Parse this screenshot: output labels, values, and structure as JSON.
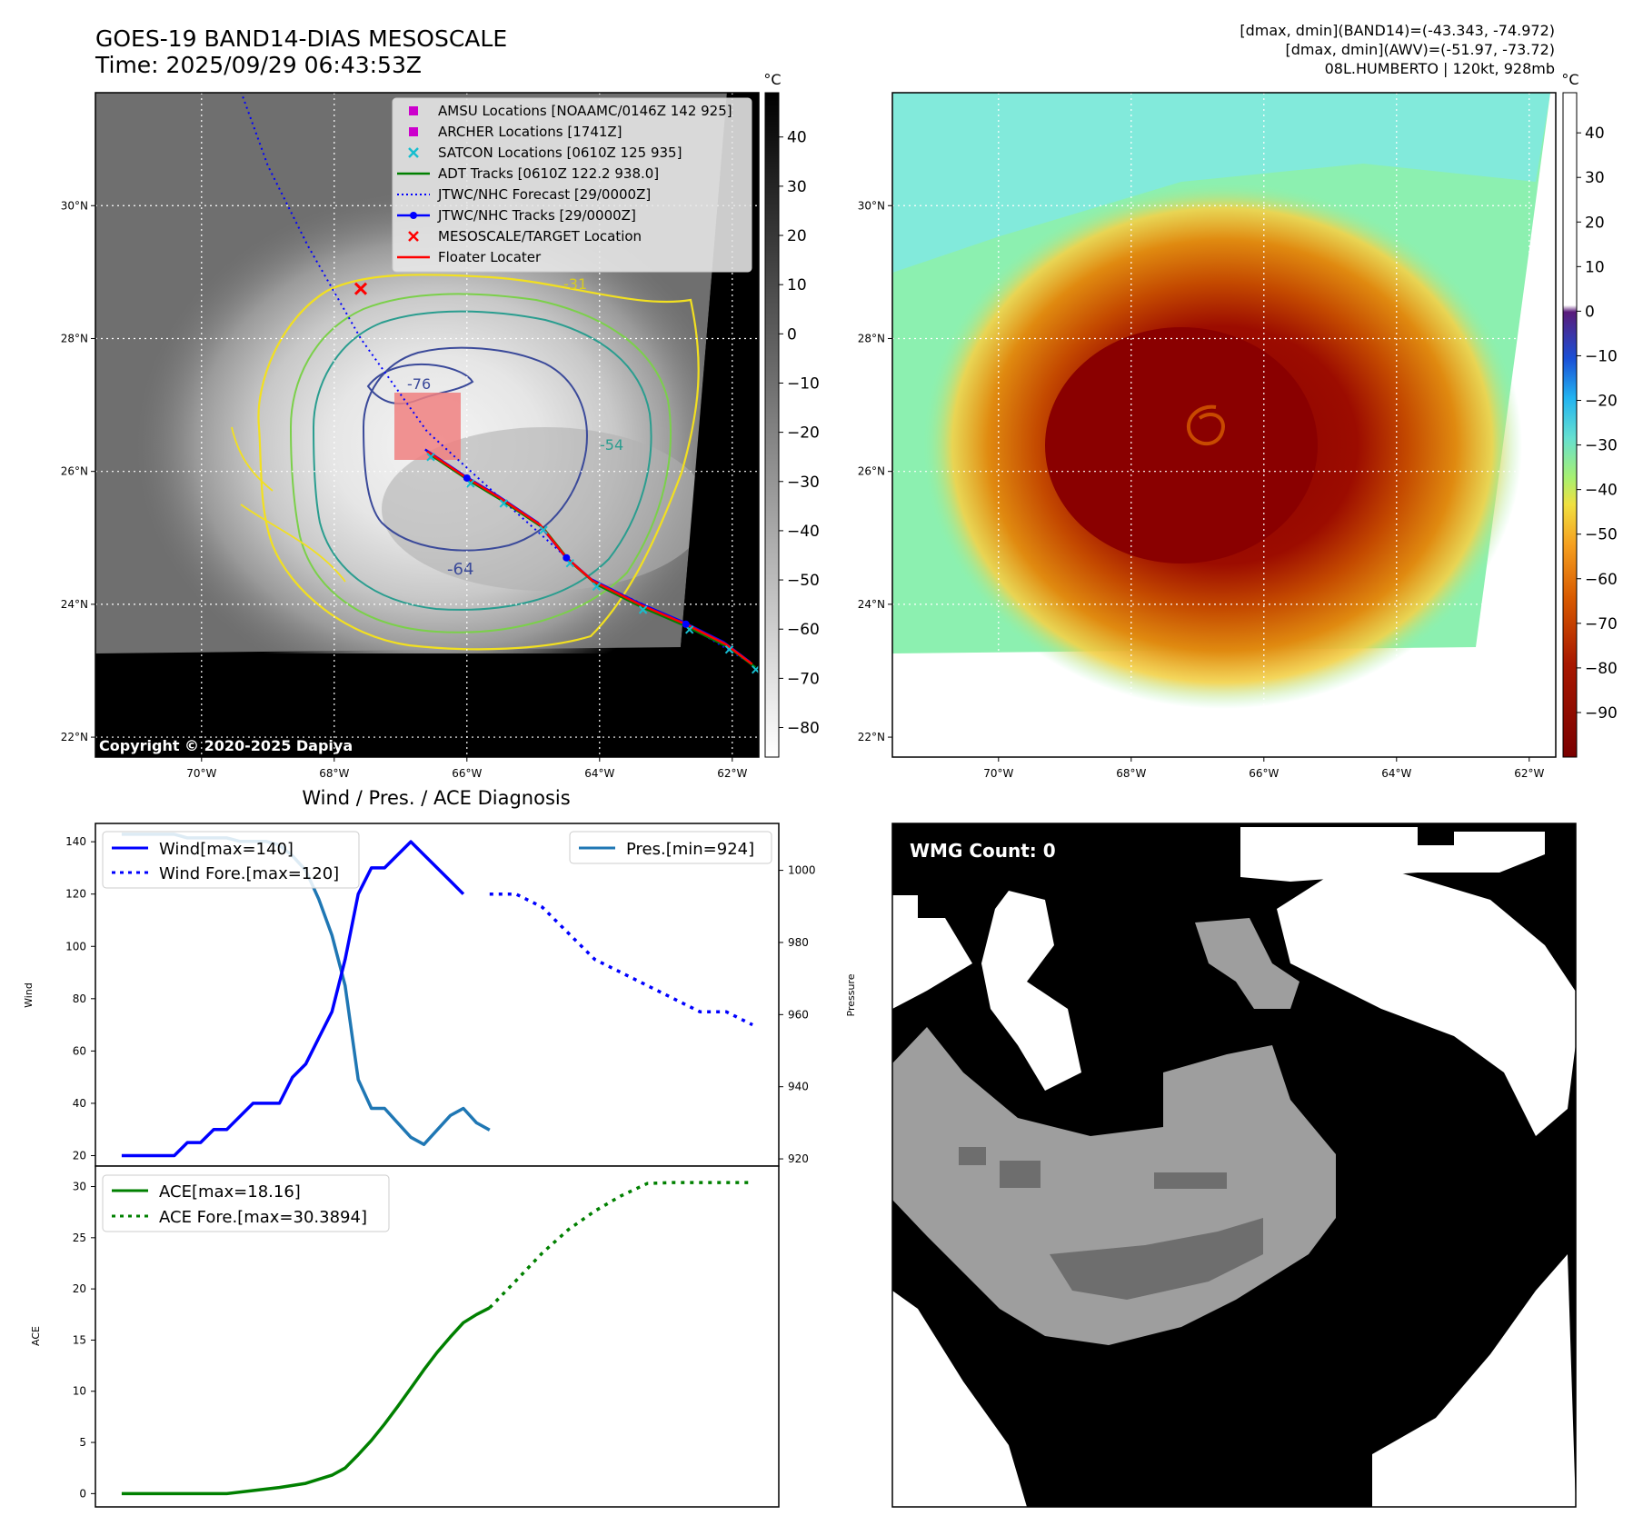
{
  "header": {
    "title_line1": "GOES-19 BAND14-DIAS MESOSCALE",
    "title_line2": "Time: 2025/09/29 06:43:53Z",
    "info_line1": "[dmax, dmin](BAND14)=(-43.343, -74.972)",
    "info_line2": "[dmax, dmin](AWV)=(-51.97, -73.72)",
    "info_line3": "08L.HUMBERTO | 120kt, 928mb"
  },
  "copyright": "Copyright © 2020-2025 Dapiya",
  "map": {
    "lat_labels": [
      "30°N",
      "28°N",
      "26°N",
      "24°N",
      "22°N"
    ],
    "lat_values": [
      30,
      28,
      26,
      24,
      22
    ],
    "lon_labels": [
      "70°W",
      "68°W",
      "66°W",
      "64°W",
      "62°W"
    ],
    "lon_values": [
      -70,
      -68,
      -66,
      -64,
      -62
    ],
    "lon_range": [
      -71.6,
      -61.6
    ],
    "lat_range": [
      21.7,
      31.7
    ],
    "contour_labels": [
      "-31",
      "-76",
      "-54",
      "-64"
    ],
    "legend": [
      {
        "label": "AMSU Locations [NOAAMC/0146Z 142 925]",
        "color": "#cc00cc",
        "marker": "square"
      },
      {
        "label": "ARCHER Locations [1741Z]",
        "color": "#cc00cc",
        "marker": "square"
      },
      {
        "label": "SATCON Locations [0610Z 125 935]",
        "color": "#17becf",
        "marker": "x"
      },
      {
        "label": "ADT Tracks [0610Z 122.2 938.0]",
        "color": "#008000",
        "marker": "line"
      },
      {
        "label": "JTWC/NHC Forecast [29/0000Z]",
        "color": "#0000ff",
        "marker": "dotted"
      },
      {
        "label": "JTWC/NHC Tracks [29/0000Z]",
        "color": "#0000ff",
        "marker": "line-dot"
      },
      {
        "label": "MESOSCALE/TARGET Location",
        "color": "#ff0000",
        "marker": "x"
      },
      {
        "label": "Floater Locater",
        "color": "#ff0000",
        "marker": "line"
      }
    ],
    "target": {
      "lon": -67.6,
      "lat": 28.75
    },
    "track": [
      [
        -66.6,
        26.3
      ],
      [
        -66.0,
        25.9
      ],
      [
        -65.5,
        25.6
      ],
      [
        -64.9,
        25.2
      ],
      [
        -64.5,
        24.7
      ],
      [
        -64.1,
        24.35
      ],
      [
        -63.4,
        24.0
      ],
      [
        -62.7,
        23.7
      ],
      [
        -62.1,
        23.4
      ],
      [
        -61.7,
        23.1
      ]
    ],
    "forecast": [
      [
        -61.7,
        23.1
      ],
      [
        -62.7,
        23.7
      ],
      [
        -64.1,
        24.35
      ],
      [
        -65.5,
        25.6
      ],
      [
        -66.6,
        26.6
      ],
      [
        -67.6,
        28.0
      ],
      [
        -68.4,
        29.4
      ],
      [
        -69.0,
        30.6
      ],
      [
        -69.4,
        31.7
      ]
    ]
  },
  "colorbar_gray": {
    "unit": "°C",
    "ticks": [
      "40",
      "30",
      "20",
      "10",
      "0",
      "−10",
      "−20",
      "−30",
      "−40",
      "−50",
      "−60",
      "−70",
      "−80"
    ],
    "values": [
      40,
      30,
      20,
      10,
      0,
      -10,
      -20,
      -30,
      -40,
      -50,
      -60,
      -70,
      -80
    ],
    "range": [
      -86,
      49
    ]
  },
  "colorbar_color": {
    "unit": "°C",
    "ticks": [
      "40",
      "30",
      "20",
      "10",
      "0",
      "−10",
      "−20",
      "−30",
      "−40",
      "−50",
      "−60",
      "−70",
      "−80",
      "−90"
    ],
    "values": [
      40,
      30,
      20,
      10,
      0,
      -10,
      -20,
      -30,
      -40,
      -50,
      -60,
      -70,
      -80,
      -90
    ],
    "range": [
      -100,
      49
    ]
  },
  "wmg": {
    "label": "WMG Count: 0"
  },
  "chart_data": [
    {
      "type": "line",
      "title": "Wind / Pres. / ACE Diagnosis",
      "ylabel": "Wind",
      "ylim": [
        16,
        147
      ],
      "yticks": [
        20,
        40,
        60,
        80,
        100,
        120,
        140
      ],
      "xlim": [
        -2,
        50
      ],
      "series": [
        {
          "name": "Wind[max=140]",
          "color": "#0000ff",
          "style": "solid",
          "x": [
            0,
            1,
            2,
            3,
            4,
            5,
            6,
            7,
            8,
            9,
            10,
            11,
            12,
            13,
            14,
            15,
            16,
            17,
            18,
            19,
            20,
            21,
            22,
            23,
            24,
            25,
            26,
            27,
            28
          ],
          "values": [
            20,
            20,
            20,
            20,
            20,
            25,
            25,
            30,
            30,
            35,
            40,
            40,
            40,
            50,
            55,
            65,
            75,
            95,
            120,
            130,
            130,
            135,
            140,
            135,
            130,
            125,
            120,
            null,
            null
          ]
        },
        {
          "name": "Wind Fore.[max=120]",
          "color": "#0000ff",
          "style": "dotted",
          "x": [
            28,
            30,
            32,
            34,
            36,
            38,
            40,
            42,
            44,
            46,
            48
          ],
          "values": [
            120,
            120,
            115,
            105,
            95,
            90,
            85,
            80,
            75,
            75,
            70
          ]
        }
      ]
    },
    {
      "type": "line",
      "ylabel": "Pressure",
      "ylim": [
        918,
        1013
      ],
      "yticks": [
        920,
        940,
        960,
        980,
        1000
      ],
      "xlim": [
        -2,
        50
      ],
      "series": [
        {
          "name": "Pres.[min=924]",
          "color": "#1f77b4",
          "style": "solid",
          "x": [
            0,
            2,
            4,
            5,
            6,
            7,
            8,
            9,
            10,
            11,
            12,
            13,
            14,
            15,
            16,
            17,
            18,
            19,
            20,
            21,
            22,
            23,
            24,
            25,
            26,
            27,
            28
          ],
          "values": [
            1010,
            1010,
            1010,
            1009,
            1009,
            1009,
            1009,
            1008,
            1008,
            1008,
            1007,
            1004,
            1000,
            992,
            982,
            968,
            942,
            934,
            934,
            930,
            926,
            924,
            928,
            932,
            934,
            930,
            928
          ]
        }
      ]
    },
    {
      "type": "line",
      "ylabel": "ACE",
      "ylim": [
        -1.3,
        32
      ],
      "yticks": [
        0,
        5,
        10,
        15,
        20,
        25,
        30
      ],
      "xlim": [
        -2,
        50
      ],
      "series": [
        {
          "name": "ACE[max=18.16]",
          "color": "#008000",
          "style": "solid",
          "x": [
            0,
            2,
            4,
            6,
            8,
            10,
            12,
            14,
            15,
            16,
            17,
            18,
            19,
            20,
            21,
            22,
            23,
            24,
            25,
            26,
            27,
            28
          ],
          "values": [
            0,
            0,
            0,
            0,
            0,
            0.3,
            0.6,
            1.0,
            1.4,
            1.8,
            2.5,
            3.8,
            5.2,
            6.8,
            8.5,
            10.3,
            12.1,
            13.8,
            15.3,
            16.7,
            17.5,
            18.16
          ]
        },
        {
          "name": "ACE Fore.[max=30.3894]",
          "color": "#008000",
          "style": "dotted",
          "x": [
            28,
            30,
            32,
            34,
            36,
            38,
            40,
            42,
            44,
            46,
            48
          ],
          "values": [
            18.16,
            20.8,
            23.5,
            25.8,
            27.6,
            29.1,
            30.3,
            30.39,
            30.39,
            30.39,
            30.39
          ]
        }
      ]
    }
  ]
}
